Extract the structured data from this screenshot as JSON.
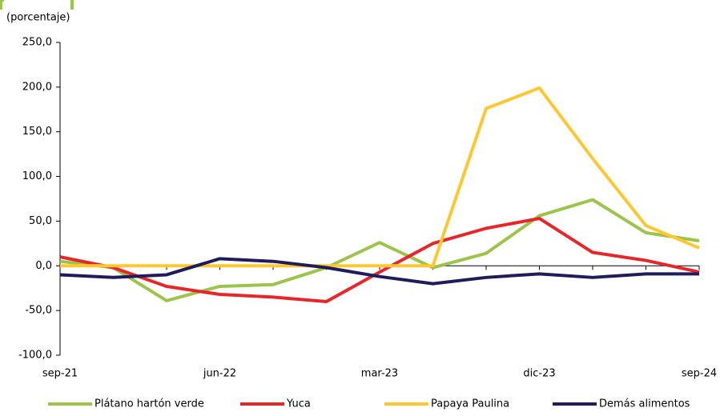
{
  "chart_data": {
    "type": "line",
    "y_label": "(porcentaje)",
    "categories": [
      "sep-21",
      null,
      null,
      "jun-22",
      null,
      null,
      "mar-23",
      null,
      null,
      "dic-23",
      null,
      null,
      "sep-24"
    ],
    "series": [
      {
        "name": "Plátano hartón verde",
        "color": "#9bc448",
        "values": [
          5,
          -2,
          -39,
          -23,
          -21,
          -2,
          26,
          -2,
          14,
          56,
          74,
          37,
          28
        ]
      },
      {
        "name": "Yuca",
        "color": "#e8262a",
        "values": [
          10,
          -2,
          -23,
          -32,
          -35,
          -40,
          -7,
          25,
          42,
          53,
          15,
          6,
          -7
        ]
      },
      {
        "name": "Papaya Paulina",
        "color": "#fdc82f",
        "values": [
          0,
          0,
          0,
          0,
          0,
          0,
          0,
          0,
          176,
          199,
          120,
          45,
          20
        ]
      },
      {
        "name": "Demás alimentos",
        "color": "#1f1c5c",
        "values": [
          -10,
          -13,
          -10,
          8,
          5,
          -2,
          -12,
          -20,
          -13,
          -9,
          -13,
          -9,
          -9
        ]
      }
    ],
    "ylim": [
      -100,
      250
    ],
    "yticks": [
      {
        "value": -100,
        "label": "-100,0"
      },
      {
        "value": -50,
        "label": "-50,0"
      },
      {
        "value": 0,
        "label": "0,0"
      },
      {
        "value": 50,
        "label": "50,0"
      },
      {
        "value": 100,
        "label": "100,0"
      },
      {
        "value": 150,
        "label": "150,0"
      },
      {
        "value": 200,
        "label": "200,0"
      },
      {
        "value": 250,
        "label": "250,0"
      }
    ]
  }
}
